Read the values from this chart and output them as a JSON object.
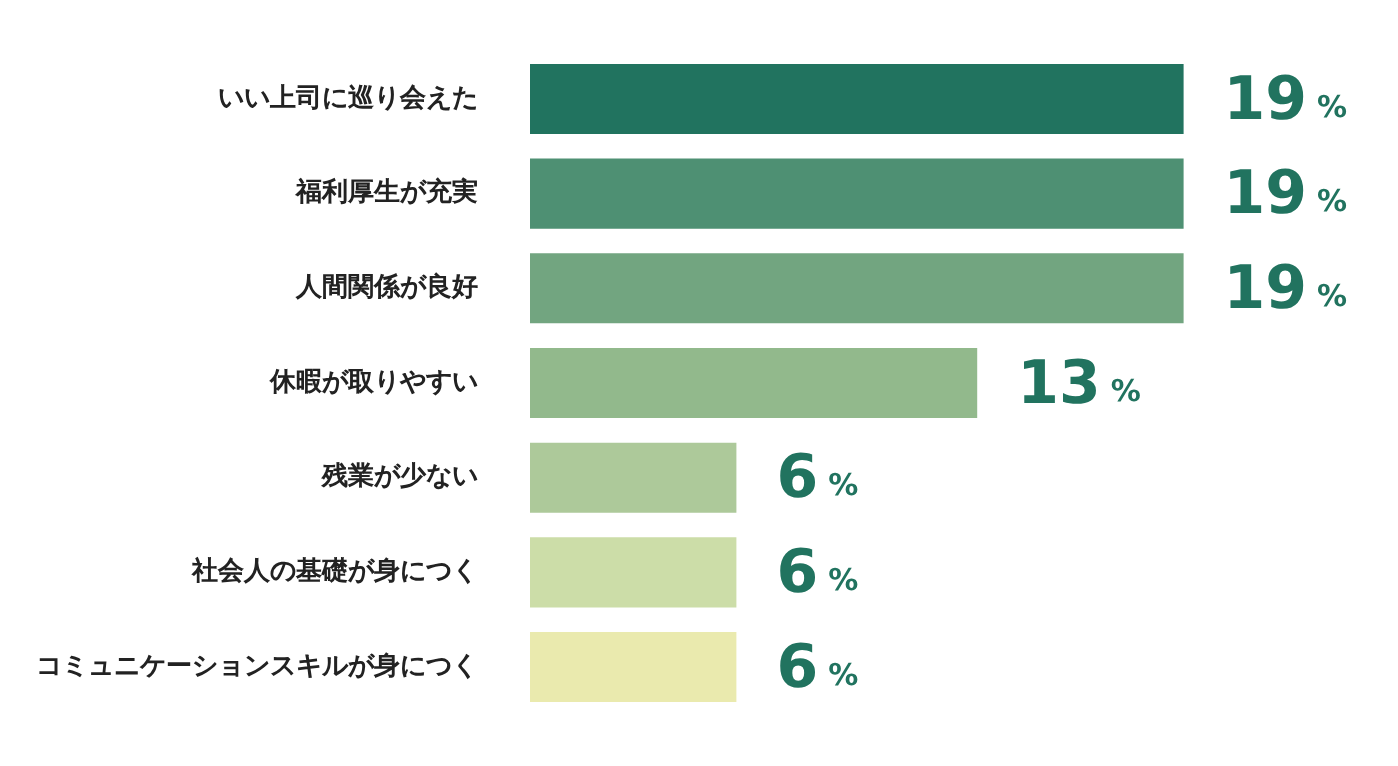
{
  "chart_data": {
    "type": "bar",
    "orientation": "horizontal",
    "categories": [
      "いい上司に巡り会えた",
      "福利厚生が充実",
      "人間関係が良好",
      "休暇が取りやすい",
      "残業が少ない",
      "社会人の基礎が身につく",
      "コミュニケーションスキルが身につく"
    ],
    "values": [
      19,
      19,
      19,
      13,
      6,
      6,
      6
    ],
    "colors": [
      "#21735f",
      "#4e9073",
      "#72a580",
      "#92b98c",
      "#adc99a",
      "#ccdda8",
      "#eaeaae"
    ],
    "value_labels": [
      "19%",
      "19%",
      "19%",
      "13%",
      "6%",
      "6%",
      "6%"
    ],
    "tick_labels": "y",
    "legend": false
  }
}
